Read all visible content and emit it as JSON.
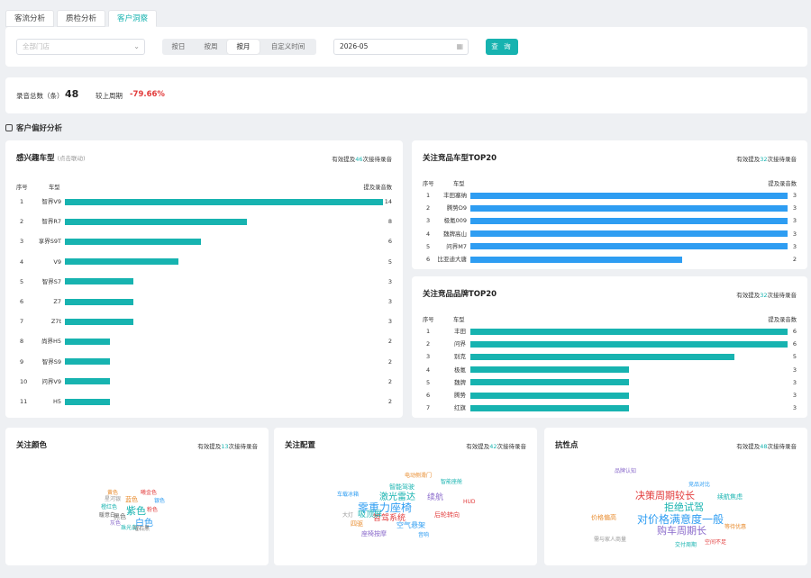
{
  "tabs": [
    "客流分析",
    "质检分析",
    "客户洞察"
  ],
  "active_tab": 2,
  "filter": {
    "store_placeholder": "全部门店",
    "segments": [
      "按日",
      "按周",
      "按月",
      "自定义时间"
    ],
    "active_segment": 2,
    "date_value": "2026-05",
    "query_label": "查 询"
  },
  "summary": {
    "total_label": "录音总数（条）",
    "total_value": "48",
    "compare_label": "较上周期",
    "compare_value": "-79.66%"
  },
  "section_title": "客户偏好分析",
  "interest_models": {
    "title": "感兴趣车型",
    "subtitle": "(点击联动)",
    "note_prefix": "有效提及",
    "note_count": "46",
    "note_suffix": "次接待录音",
    "col_index": "序号",
    "col_name": "车型",
    "col_value": "提及录音数",
    "rows": [
      {
        "idx": "1",
        "name": "智界V9",
        "value": 14
      },
      {
        "idx": "2",
        "name": "智界R7",
        "value": 8
      },
      {
        "idx": "3",
        "name": "享界S9T",
        "value": 6
      },
      {
        "idx": "4",
        "name": "V9",
        "value": 5
      },
      {
        "idx": "5",
        "name": "智界S7",
        "value": 3
      },
      {
        "idx": "6",
        "name": "Z7",
        "value": 3
      },
      {
        "idx": "7",
        "name": "Z7t",
        "value": 3
      },
      {
        "idx": "8",
        "name": "尚界H5",
        "value": 2
      },
      {
        "idx": "9",
        "name": "智界S9",
        "value": 2
      },
      {
        "idx": "10",
        "name": "问界V9",
        "value": 2
      },
      {
        "idx": "11",
        "name": "H5",
        "value": 2
      }
    ],
    "max": 14
  },
  "competitor_models": {
    "title": "关注竞品车型TOP20",
    "note_prefix": "有效提及",
    "note_count": "32",
    "note_suffix": "次接待录音",
    "col_index": "序号",
    "col_name": "车型",
    "col_value": "提及录音数",
    "rows": [
      {
        "idx": "1",
        "name": "丰田塞纳",
        "value": 3
      },
      {
        "idx": "2",
        "name": "腾势D9",
        "value": 3
      },
      {
        "idx": "3",
        "name": "极氪009",
        "value": 3
      },
      {
        "idx": "4",
        "name": "魏牌高山",
        "value": 3
      },
      {
        "idx": "5",
        "name": "问界M7",
        "value": 3
      },
      {
        "idx": "6",
        "name": "比亚迪大唐",
        "value": 2
      }
    ],
    "max": 3
  },
  "competitor_brands": {
    "title": "关注竞品品牌TOP20",
    "note_prefix": "有效提及",
    "note_count": "32",
    "note_suffix": "次接待录音",
    "col_index": "序号",
    "col_name": "车型",
    "col_value": "提及录音数",
    "rows": [
      {
        "idx": "1",
        "name": "丰田",
        "value": 6
      },
      {
        "idx": "2",
        "name": "问界",
        "value": 6
      },
      {
        "idx": "3",
        "name": "别克",
        "value": 5
      },
      {
        "idx": "4",
        "name": "极氪",
        "value": 3
      },
      {
        "idx": "5",
        "name": "魏牌",
        "value": 3
      },
      {
        "idx": "6",
        "name": "腾势",
        "value": 3
      },
      {
        "idx": "7",
        "name": "红旗",
        "value": 3
      }
    ],
    "max": 6
  },
  "colors_card": {
    "title": "关注颜色",
    "note_prefix": "有效提及",
    "note_count": "13",
    "note_suffix": "次接待录音",
    "words": [
      {
        "t": "紫色",
        "c": "#17b3b0"
      },
      {
        "t": "白色",
        "c": "#2e9df2"
      },
      {
        "t": "蓝色",
        "c": "#e88b2d"
      },
      {
        "t": "黑色",
        "c": "#666"
      },
      {
        "t": "橙红色",
        "c": "#17b3b0"
      },
      {
        "t": "黄色",
        "c": "#e88b2d"
      },
      {
        "t": "曜石黑",
        "c": "#666"
      },
      {
        "t": "灰色",
        "c": "#8a6acb"
      },
      {
        "t": "银色",
        "c": "#2e9df2"
      },
      {
        "t": "粉色",
        "c": "#e23b3b"
      },
      {
        "t": "珠光白",
        "c": "#17b3b0"
      },
      {
        "t": "星河银",
        "c": "#999"
      },
      {
        "t": "曦金色",
        "c": "#e23b3b"
      },
      {
        "t": "暖意白",
        "c": "#666"
      }
    ]
  },
  "config_card": {
    "title": "关注配置",
    "note_prefix": "有效提及",
    "note_count": "42",
    "note_suffix": "次接待录音",
    "words": [
      {
        "t": "零重力座椅",
        "c": "#2e9df2"
      },
      {
        "t": "激光雷达",
        "c": "#17b3b0"
      },
      {
        "t": "续航",
        "c": "#8a6acb"
      },
      {
        "t": "智驾系统",
        "c": "#e23b3b"
      },
      {
        "t": "吸顶屏",
        "c": "#17b3b0"
      },
      {
        "t": "空气悬架",
        "c": "#2e9df2"
      },
      {
        "t": "四驱",
        "c": "#e88b2d"
      },
      {
        "t": "后轮转向",
        "c": "#e23b3b"
      },
      {
        "t": "智能驾驶",
        "c": "#17b3b0"
      },
      {
        "t": "座椅按摩",
        "c": "#8a6acb"
      },
      {
        "t": "车载冰箱",
        "c": "#2e9df2"
      },
      {
        "t": "电动侧滑门",
        "c": "#e88b2d"
      },
      {
        "t": "智能座舱",
        "c": "#17b3b0"
      },
      {
        "t": "大灯",
        "c": "#999"
      },
      {
        "t": "HUD",
        "c": "#e23b3b"
      },
      {
        "t": "音响",
        "c": "#2e9df2"
      }
    ]
  },
  "resist_card": {
    "title": "抗性点",
    "note_prefix": "有效提及",
    "note_count": "48",
    "note_suffix": "次接待录音",
    "words": [
      {
        "t": "对价格满意度一般",
        "c": "#2e9df2"
      },
      {
        "t": "购车周期长",
        "c": "#8a6acb"
      },
      {
        "t": "拒绝试驾",
        "c": "#17b3b0"
      },
      {
        "t": "决策周期较长",
        "c": "#e23b3b"
      },
      {
        "t": "价格偏高",
        "c": "#e88b2d"
      },
      {
        "t": "续航焦虑",
        "c": "#17b3b0"
      },
      {
        "t": "竞品对比",
        "c": "#2e9df2"
      },
      {
        "t": "空间不足",
        "c": "#e23b3b"
      },
      {
        "t": "品牌认知",
        "c": "#8a6acb"
      },
      {
        "t": "需与家人商量",
        "c": "#999"
      },
      {
        "t": "等待优惠",
        "c": "#e88b2d"
      },
      {
        "t": "交付周期",
        "c": "#17b3b0"
      }
    ]
  }
}
